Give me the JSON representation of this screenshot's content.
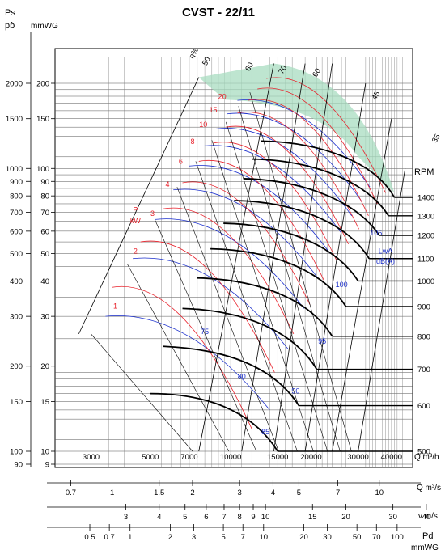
{
  "chart_data": {
    "type": "line",
    "title": "CVST - 22/11",
    "y_left_labels": {
      "pa_label": "Ps",
      "pa_sub": "pɓ",
      "mm_label": "mmWG"
    },
    "y_right_label": "RPM",
    "x_flow_unit": "Q m³/h",
    "x_flow_unit_s": "Q m³/s",
    "x_velocity_unit": "v m/s",
    "x_pd_unit": "Pd",
    "x_pd_unit2": "mmWG",
    "y_pa_ticks": [
      {
        "label": "2000",
        "mm": 200
      },
      {
        "label": "1500",
        "mm": 150
      },
      {
        "label": "1000",
        "mm": 100
      },
      {
        "label": "900",
        "mm": 90
      },
      {
        "label": "800",
        "mm": 80
      },
      {
        "label": "700",
        "mm": 70
      },
      {
        "label": "600",
        "mm": 60
      },
      {
        "label": "500",
        "mm": 50
      },
      {
        "label": "400",
        "mm": 40
      },
      {
        "label": "300",
        "mm": 30
      },
      {
        "label": "200",
        "mm": 20
      },
      {
        "label": "150",
        "mm": 15
      },
      {
        "label": "100",
        "mm": 10
      },
      {
        "label": "90",
        "mm": 9
      }
    ],
    "y_mm_ticks": [
      "200",
      "150",
      "100",
      "90",
      "80",
      "70",
      "60",
      "50",
      "40",
      "30",
      "20",
      "15",
      "10",
      "9"
    ],
    "x_flow_ticks": [
      "3000",
      "5000",
      "7000",
      "10000",
      "15000",
      "20000",
      "30000",
      "40000"
    ],
    "x_flow_s_ticks": [
      "0.7",
      "1",
      "1.5",
      "2",
      "3",
      "4",
      "5",
      "7",
      "10"
    ],
    "x_velocity_ticks": [
      "3",
      "4",
      "5",
      "6",
      "7",
      "8",
      "9",
      "10",
      "15",
      "20",
      "30",
      "40"
    ],
    "x_pd_ticks": [
      "0.5",
      "0.7",
      "1",
      "2",
      "3",
      "5",
      "7",
      "10",
      "20",
      "30",
      "50",
      "70",
      "100"
    ],
    "rpm_ticks": [
      {
        "rpm": "1400",
        "mm": 79
      },
      {
        "rpm": "1300",
        "mm": 68
      },
      {
        "rpm": "1200",
        "mm": 58
      },
      {
        "rpm": "1100",
        "mm": 48
      },
      {
        "rpm": "1000",
        "mm": 40
      },
      {
        "rpm": "900",
        "mm": 32.5
      },
      {
        "rpm": "800",
        "mm": 25.5
      },
      {
        "rpm": "700",
        "mm": 19.5
      },
      {
        "rpm": "600",
        "mm": 14.5
      },
      {
        "rpm": "500",
        "mm": 10
      }
    ],
    "efficiency_labels": [
      "η%",
      "50",
      "60",
      "70",
      "60",
      "45",
      "35"
    ],
    "power_labels": [
      "1",
      "2",
      "3",
      "4",
      "6",
      "8",
      "10",
      "15",
      "20"
    ],
    "power_axis_labels": {
      "p": "P",
      "kw": "kW"
    },
    "noise_labels": [
      "75",
      "80",
      "85",
      "90",
      "95",
      "100",
      "105"
    ],
    "noise_axis_labels": {
      "lwa": "LwA",
      "dba": "dB(A)"
    },
    "fan_curves": [
      {
        "rpm": "500",
        "points": [
          [
            5000,
            16.0
          ],
          [
            8000,
            16.0
          ],
          [
            12000,
            14.0
          ],
          [
            15000,
            10.0
          ]
        ]
      },
      {
        "rpm": "600",
        "points": [
          [
            5600,
            23.5
          ],
          [
            9500,
            23.0
          ],
          [
            14500,
            20.0
          ],
          [
            18000,
            14.5
          ]
        ]
      },
      {
        "rpm": "700",
        "points": [
          [
            6600,
            32.0
          ],
          [
            11000,
            31.5
          ],
          [
            17000,
            27.0
          ],
          [
            21000,
            19.5
          ]
        ]
      },
      {
        "rpm": "800",
        "points": [
          [
            7500,
            41.0
          ],
          [
            12500,
            40.5
          ],
          [
            19500,
            35.0
          ],
          [
            24000,
            25.5
          ]
        ]
      },
      {
        "rpm": "900",
        "points": [
          [
            8400,
            52.0
          ],
          [
            14000,
            51.5
          ],
          [
            22000,
            44.0
          ],
          [
            27000,
            32.5
          ]
        ]
      },
      {
        "rpm": "1000",
        "points": [
          [
            9400,
            64.0
          ],
          [
            15500,
            63.5
          ],
          [
            24500,
            54.0
          ],
          [
            30000,
            40.0
          ]
        ]
      },
      {
        "rpm": "1100",
        "points": [
          [
            10300,
            77.0
          ],
          [
            17000,
            76.5
          ],
          [
            27000,
            65.0
          ],
          [
            33000,
            48.0
          ]
        ]
      },
      {
        "rpm": "1200",
        "points": [
          [
            11200,
            92.0
          ],
          [
            18500,
            91.0
          ],
          [
            29500,
            77.0
          ],
          [
            36000,
            58.0
          ]
        ]
      },
      {
        "rpm": "1300",
        "points": [
          [
            12000,
            108.0
          ],
          [
            20000,
            107.0
          ],
          [
            32000,
            91.0
          ],
          [
            39000,
            68.0
          ]
        ]
      },
      {
        "rpm": "1400",
        "points": [
          [
            13000,
            125.0
          ],
          [
            21500,
            124.0
          ],
          [
            34500,
            106.0
          ],
          [
            41000,
            79.0
          ]
        ]
      }
    ]
  }
}
